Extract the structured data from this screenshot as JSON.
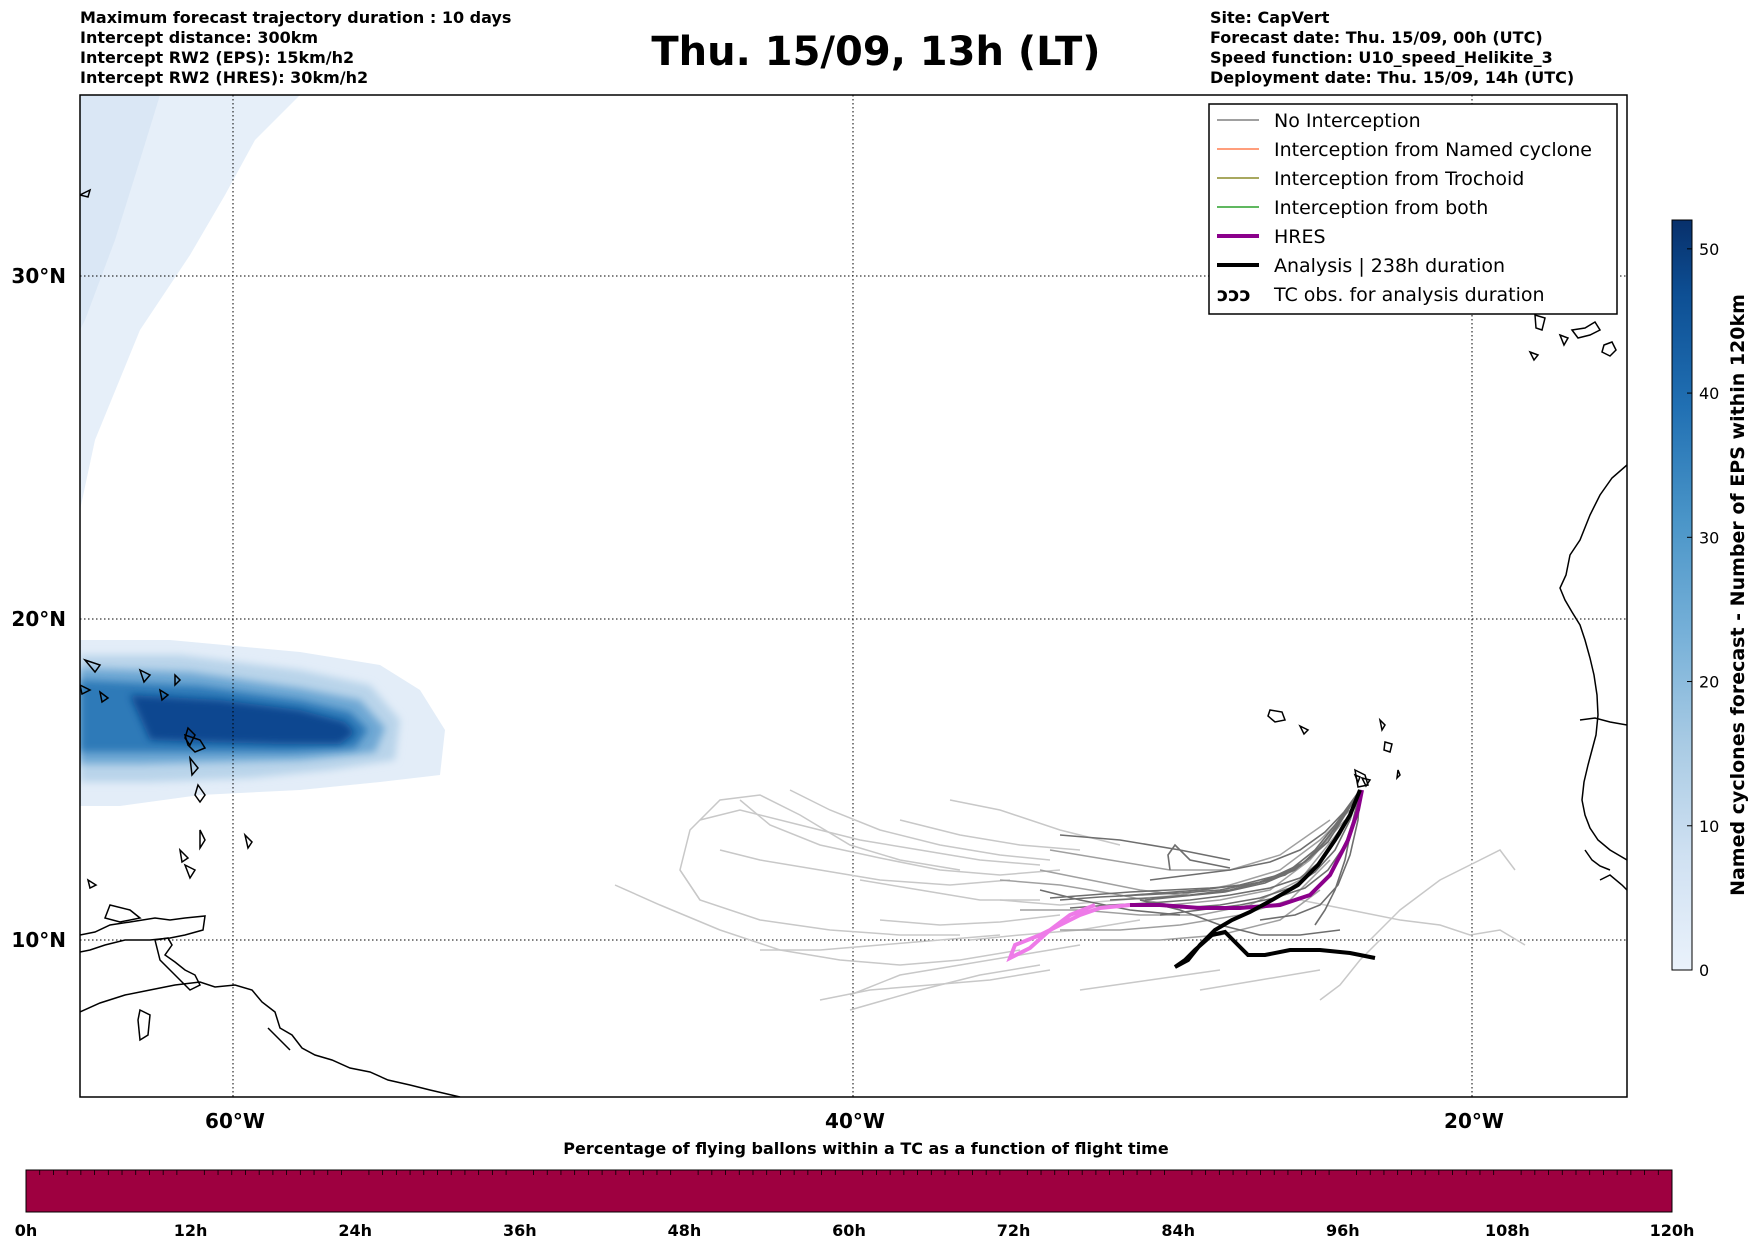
{
  "header_left": [
    "Maximum forecast trajectory duration : 10 days",
    "Intercept distance: 300km",
    "Intercept RW2 (EPS):  15km/h2",
    "Intercept RW2 (HRES): 30km/h2"
  ],
  "title": "Thu. 15/09, 13h (LT)",
  "header_right": [
    "Site: CapVert",
    "Forecast date: Thu. 15/09, 00h (UTC)",
    "Speed function: U10_speed_Helikite_3",
    "Deployment date: Thu. 15/09, 14h (UTC)"
  ],
  "map": {
    "lat_labels": [
      "30°N",
      "20°N",
      "10°N"
    ],
    "lon_labels": [
      "60°W",
      "40°W",
      "20°W"
    ]
  },
  "legend": {
    "items": [
      {
        "label": "No Interception",
        "color": "#808080",
        "style": "thin"
      },
      {
        "label": "Interception from Named cyclone",
        "color": "#ff7f50",
        "style": "thin"
      },
      {
        "label": "Interception from Trochoid",
        "color": "#8b8b2a",
        "style": "thin"
      },
      {
        "label": "Interception from both",
        "color": "#2ca02c",
        "style": "thin"
      },
      {
        "label": "HRES",
        "color": "#8b008b",
        "style": "thick"
      },
      {
        "label": "Analysis | 238h duration",
        "color": "#000000",
        "style": "thick"
      },
      {
        "label": "TC obs. for analysis duration",
        "color": "#000000",
        "style": "tc"
      }
    ]
  },
  "colorbar": {
    "label": "Named cyclones forecast - Number of EPS within 120km",
    "ticks": [
      "0",
      "10",
      "20",
      "30",
      "40",
      "50"
    ],
    "min": 0,
    "max": 52,
    "colors": [
      "#eaf2fb",
      "#c6dbef",
      "#9ecae1",
      "#6baed6",
      "#4292c6",
      "#2171b5",
      "#08519c",
      "#08306b"
    ]
  },
  "bottom_bar": {
    "title": "Percentage of flying ballons within a TC as a function of flight time",
    "ticks": [
      "0h",
      "12h",
      "24h",
      "36h",
      "48h",
      "60h",
      "72h",
      "84h",
      "96h",
      "108h",
      "120h"
    ],
    "color": "#9e0040"
  }
}
